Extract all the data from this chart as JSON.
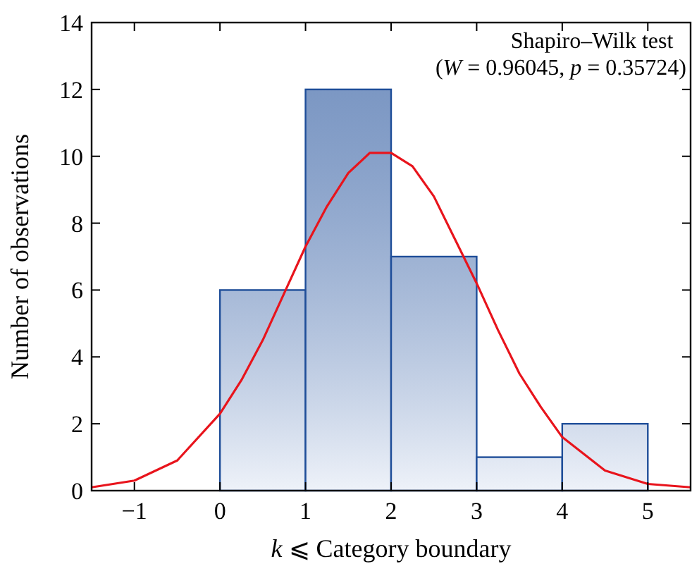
{
  "chart_data": {
    "type": "histogram",
    "xlabel": "k ⩽ Category boundary",
    "ylabel": "Number of observations",
    "bins": [
      0,
      1,
      2,
      3,
      4,
      5
    ],
    "values": [
      6,
      12,
      7,
      1,
      2
    ],
    "color": "#1f4e99",
    "series": [
      {
        "type": "line",
        "color": "#e8141c",
        "x": [
          -1.5,
          -1,
          -0.5,
          0,
          0.25,
          0.5,
          0.75,
          1,
          1.25,
          1.5,
          1.75,
          1.9,
          2,
          2.25,
          2.5,
          2.75,
          3,
          3.25,
          3.5,
          3.75,
          4,
          4.5,
          5,
          5.5
        ],
        "values": [
          0.1,
          0.3,
          0.9,
          2.3,
          3.3,
          4.5,
          5.9,
          7.3,
          8.5,
          9.5,
          10.1,
          10.1,
          10.1,
          9.7,
          8.8,
          7.5,
          6.2,
          4.8,
          3.5,
          2.5,
          1.6,
          0.6,
          0.2,
          0.1
        ]
      }
    ],
    "annotations": [
      "Shapiro–Wilk test",
      "(W = 0.96045, p = 0.35724)"
    ],
    "xlim": [
      -1.5,
      5.5
    ],
    "xticks": [
      -1,
      0,
      1,
      2,
      3,
      4,
      5
    ],
    "ylim": [
      0,
      14
    ],
    "yticks": [
      0,
      2,
      4,
      6,
      8,
      10,
      12,
      14
    ],
    "marker": "none",
    "line_style": "solid",
    "grid": false
  }
}
